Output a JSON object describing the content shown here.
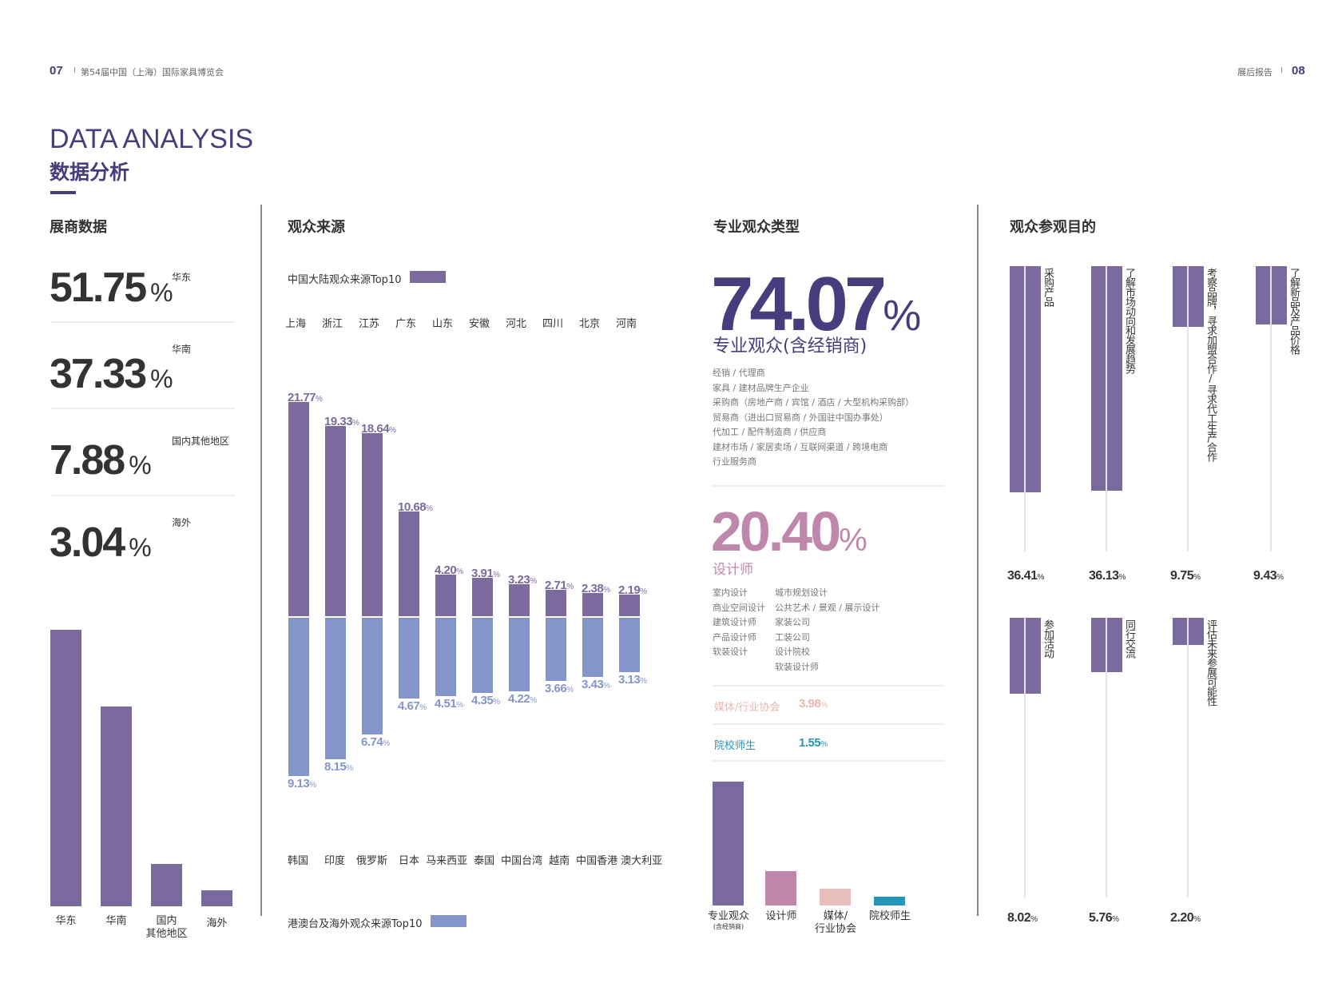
{
  "header": {
    "left_page": "07",
    "left_title": "第54届中国（上海）国际家具博览会",
    "right_title": "展后报告",
    "right_page": "08",
    "separator": "I"
  },
  "title": {
    "en": "DATA ANALYSIS",
    "cn": "数据分析"
  },
  "colors": {
    "brand": "#463d7c",
    "bar_purple": "#7b6a9e",
    "bar_blue": "#8496c9",
    "designer_pink": "#c087ac",
    "media_peach": "#e8c0bb",
    "student_teal": "#2596b8"
  },
  "exhibitors": {
    "title": "展商数据",
    "pct_symbol": "%",
    "stats": [
      {
        "value": "51.75",
        "label": "华东"
      },
      {
        "value": "37.33",
        "label": "华南"
      },
      {
        "value": "7.88",
        "label": "国内其他地区"
      },
      {
        "value": "3.04",
        "label": "海外"
      }
    ],
    "bar_labels": [
      "华东",
      "华南",
      "国内\n其他地区",
      "海外"
    ]
  },
  "sources": {
    "title": "观众来源",
    "legend_top": "中国大陆观众来源Top10",
    "legend_bottom": "港澳台及海外观众来源Top10"
  },
  "professional": {
    "title": "专业观众类型",
    "main_value": "74.07",
    "main_label": "专业观众(含经销商)",
    "main_items": [
      "经销 / 代理商",
      "家具 / 建材品牌生产企业",
      "采购商（房地产商 / 宾馆 / 酒店 / 大型机构采购部）",
      "贸易商（进出口贸易商 / 外国驻中国办事处）",
      "代加工 / 配件制造商 / 供应商",
      "建材市场 / 家居卖场 / 互联网渠道 / 跨境电商",
      "行业服务商"
    ],
    "designer_value": "20.40",
    "designer_label": "设计师",
    "designer_items_left": [
      "室内设计",
      "商业空间设计",
      "建筑设计师",
      "产品设计师",
      "软装设计"
    ],
    "designer_items_right": [
      "城市规划设计",
      "公共艺术 / 景观 / 展示设计",
      "家装公司",
      "工装公司",
      "设计院校",
      "软装设计师"
    ],
    "media_label": "媒体/行业协会",
    "media_value": "3.98",
    "student_label": "院校师生",
    "student_value": "1.55",
    "pct_symbol": "%",
    "bar_labels": [
      {
        "line1": "专业观众",
        "line2": "(含经销商)"
      },
      {
        "line1": "设计师",
        "line2": ""
      },
      {
        "line1": "媒体/",
        "line2": "行业协会"
      },
      {
        "line1": "院校师生",
        "line2": ""
      }
    ]
  },
  "purpose": {
    "title": "观众参观目的"
  },
  "chart_data": [
    {
      "type": "bar",
      "title": "展商数据",
      "categories": [
        "华东",
        "华南",
        "国内其他地区",
        "海外"
      ],
      "values": [
        51.75,
        37.33,
        7.88,
        3.04
      ],
      "unit": "%"
    },
    {
      "type": "bar",
      "title": "观众来源",
      "series": [
        {
          "name": "中国大陆观众来源Top10",
          "categories": [
            "上海",
            "浙江",
            "江苏",
            "广东",
            "山东",
            "安徽",
            "河北",
            "四川",
            "北京",
            "河南"
          ],
          "values": [
            21.77,
            19.33,
            18.64,
            10.68,
            4.2,
            3.91,
            3.23,
            2.71,
            2.38,
            2.19
          ],
          "color": "#7b6a9e",
          "direction": "up"
        },
        {
          "name": "港澳台及海外观众来源Top10",
          "categories": [
            "韩国",
            "印度",
            "俄罗斯",
            "日本",
            "马来西亚",
            "泰国",
            "中国台湾",
            "越南",
            "中国香港",
            "澳大利亚"
          ],
          "values": [
            9.13,
            8.15,
            6.74,
            4.67,
            4.51,
            4.35,
            4.22,
            3.66,
            3.43,
            3.13
          ],
          "color": "#8496c9",
          "direction": "down"
        }
      ],
      "unit": "%"
    },
    {
      "type": "bar",
      "title": "专业观众类型",
      "categories": [
        "专业观众(含经销商)",
        "设计师",
        "媒体/行业协会",
        "院校师生"
      ],
      "values": [
        74.07,
        20.4,
        3.98,
        1.55
      ],
      "colors": [
        "#7b6a9e",
        "#c087ac",
        "#e8c0bb",
        "#2596b8"
      ],
      "unit": "%"
    },
    {
      "type": "bar",
      "title": "观众参观目的",
      "categories": [
        "采购产品",
        "了解市场动向和发展趋势",
        "考察品牌，寻求加盟合作/寻求代工生产合作",
        "了解新品及产品价格",
        "参加活动",
        "同行交流",
        "评估未来参展可能性"
      ],
      "values": [
        36.41,
        36.13,
        9.75,
        9.43,
        8.02,
        5.76,
        2.2
      ],
      "unit": "%"
    }
  ]
}
